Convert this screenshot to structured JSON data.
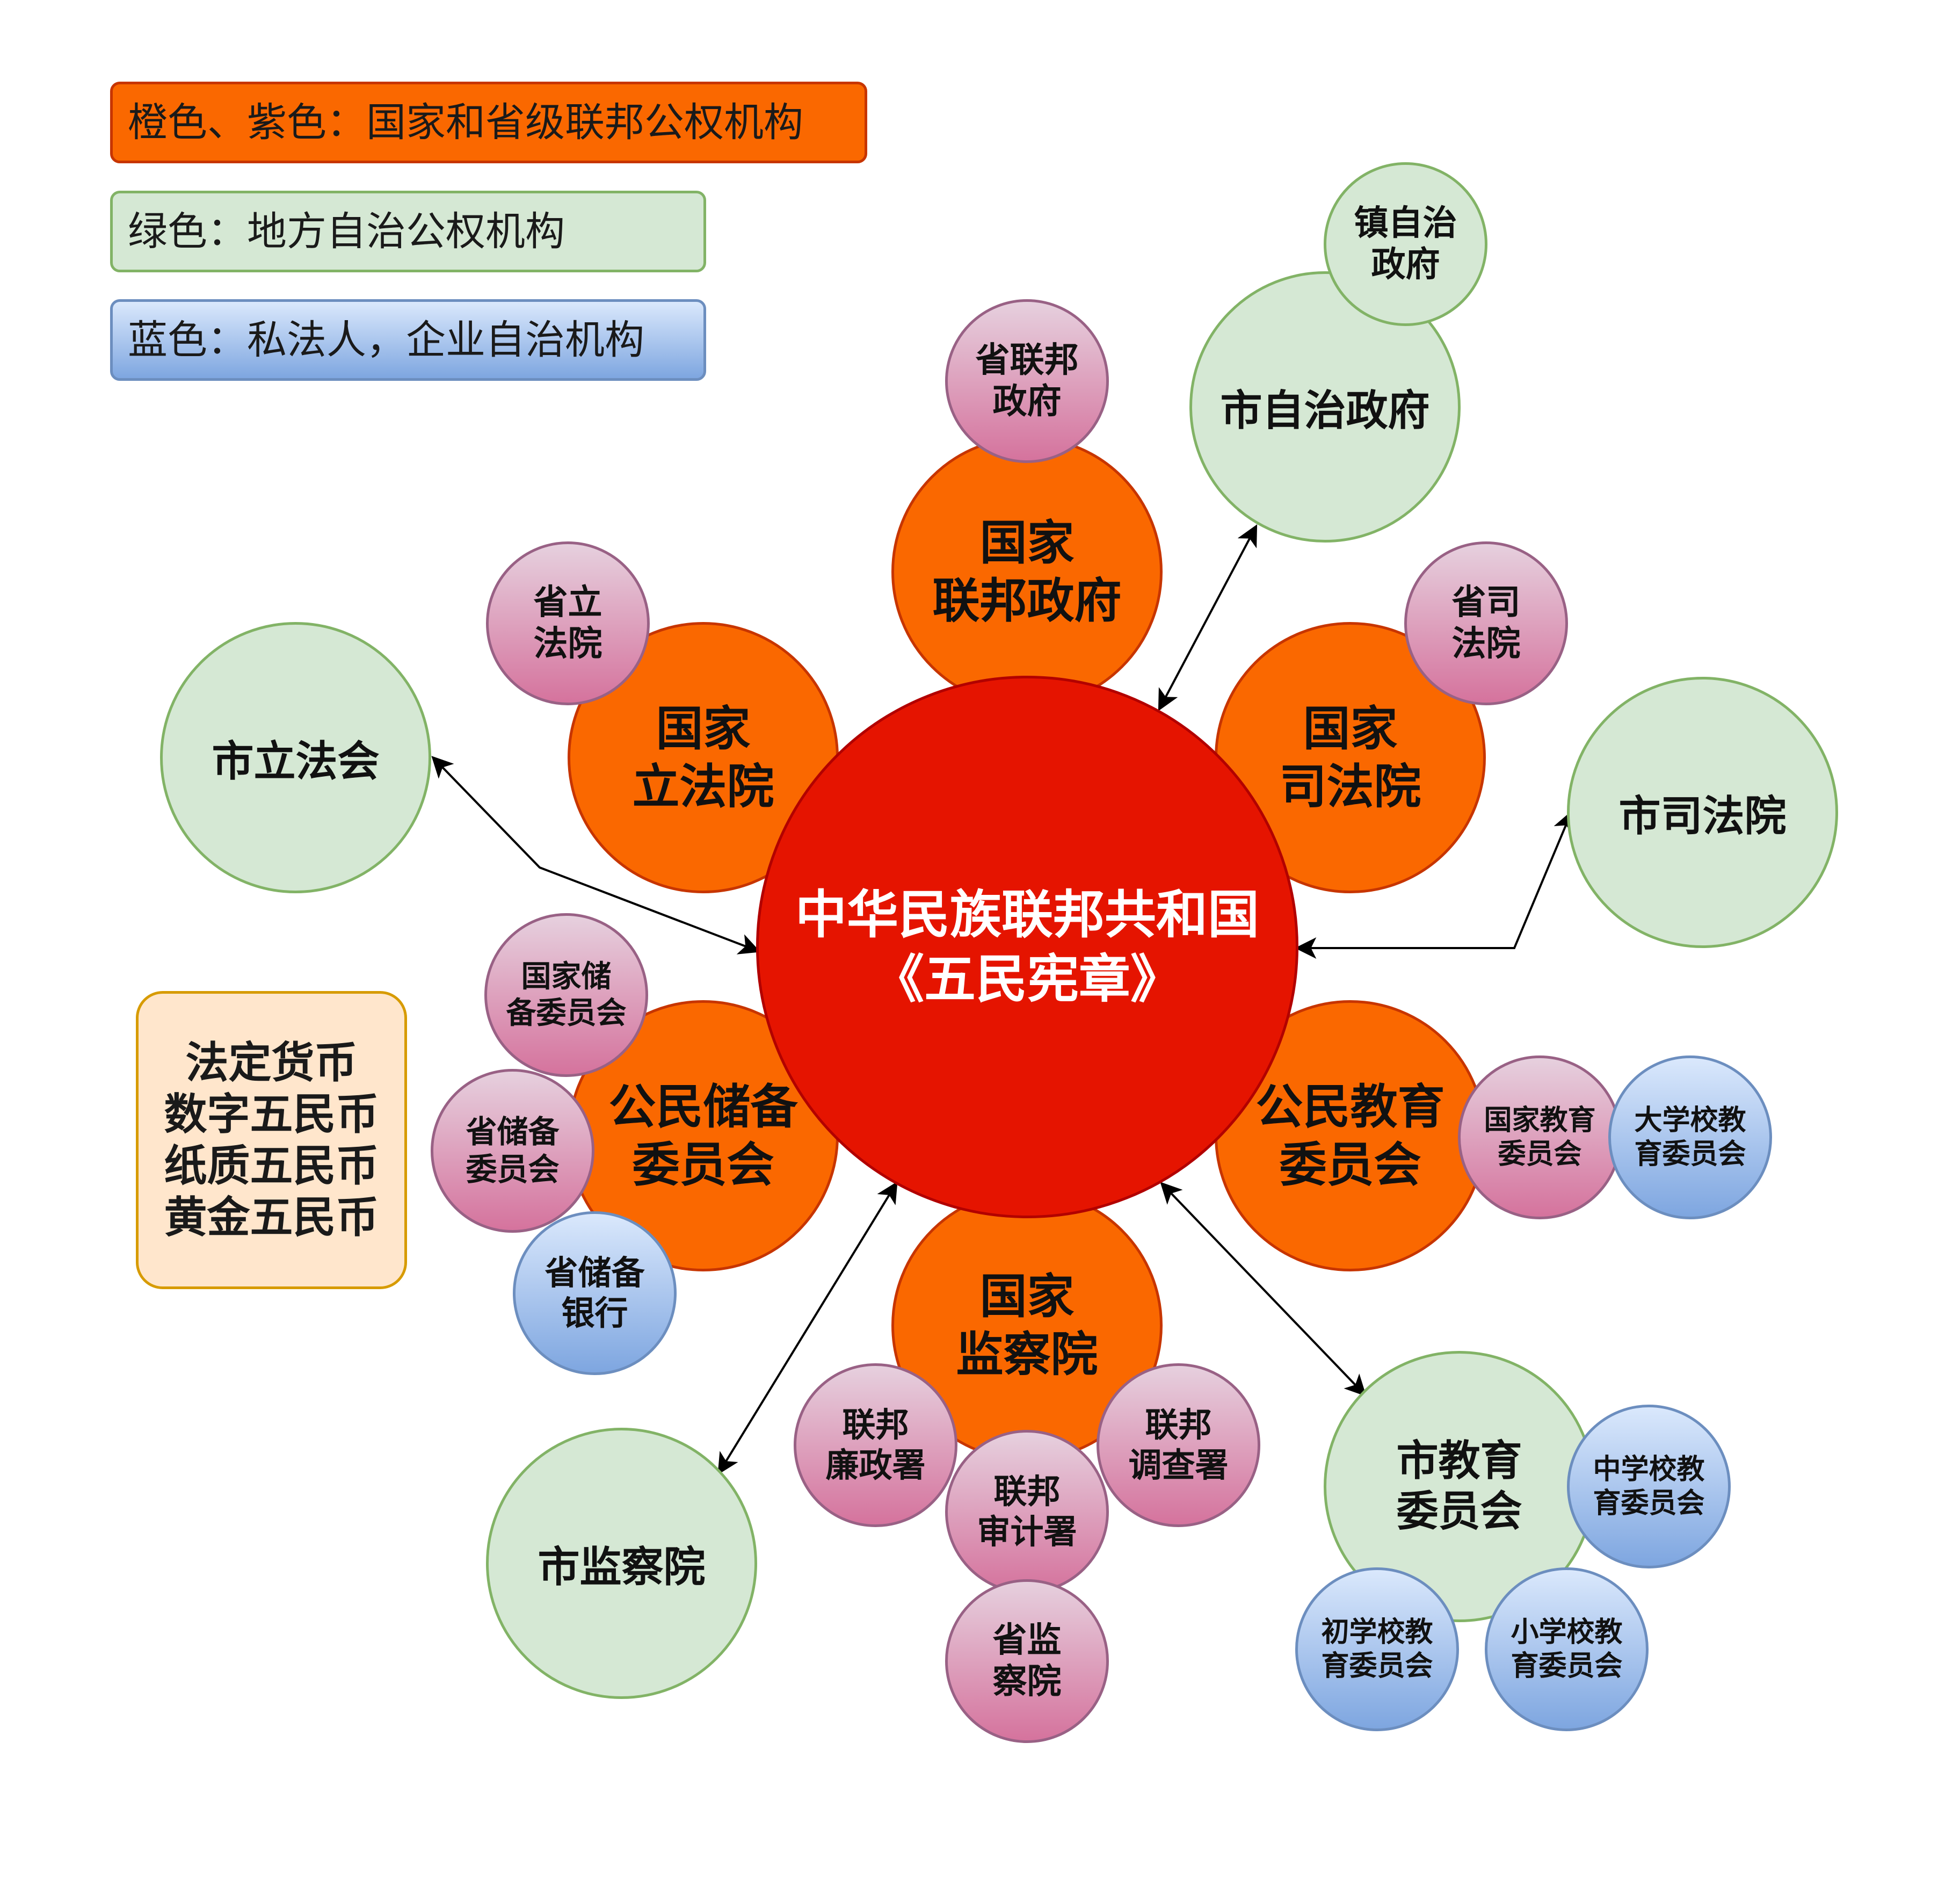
{
  "colors": {
    "orange_fill": "#fa6800",
    "orange_stroke": "#c73500",
    "red_fill": "#e51400",
    "red_stroke": "#b20000",
    "pink_fill_top": "#e6d0de",
    "pink_fill_bottom": "#d5739d",
    "pink_stroke": "#996185",
    "green_fill": "#d5e8d4",
    "green_stroke": "#82b366",
    "blue_fill_top": "#dae8fc",
    "blue_fill_bottom": "#7ea6e0",
    "blue_stroke": "#6c8ebf",
    "currency_fill": "#ffe6cc",
    "currency_stroke": "#d79b00",
    "arrow": "#000000"
  },
  "legend": {
    "orange_purple": "橙色、紫色：国家和省级联邦公权机构",
    "green": "绿色：地方自治公权机构",
    "blue": "蓝色：私法人，企业自治机构"
  },
  "currency": {
    "lines": [
      "法定货币",
      "数字五民币",
      "纸质五民币",
      "黄金五民币"
    ]
  },
  "center": {
    "lines": [
      "中华民族联邦共和国",
      "《五民宪章》"
    ]
  },
  "national": [
    {
      "id": "gov",
      "lines": [
        "国家",
        "联邦政府"
      ]
    },
    {
      "id": "leg",
      "lines": [
        "国家",
        "立法院"
      ]
    },
    {
      "id": "jud",
      "lines": [
        "国家",
        "司法院"
      ]
    },
    {
      "id": "res",
      "lines": [
        "公民储备",
        "委员会"
      ]
    },
    {
      "id": "edu",
      "lines": [
        "公民教育",
        "委员会"
      ]
    },
    {
      "id": "sup",
      "lines": [
        "国家",
        "监察院"
      ]
    }
  ],
  "provincial": [
    {
      "id": "prov-gov",
      "lines": [
        "省联邦",
        "政府"
      ]
    },
    {
      "id": "prov-leg",
      "lines": [
        "省立",
        "法院"
      ]
    },
    {
      "id": "prov-jud",
      "lines": [
        "省司",
        "法院"
      ]
    },
    {
      "id": "nat-reserve",
      "lines": [
        "国家储",
        "备委员会"
      ]
    },
    {
      "id": "prov-reserve",
      "lines": [
        "省储备",
        "委员会"
      ]
    },
    {
      "id": "nat-edu",
      "lines": [
        "国家教育",
        "委员会"
      ]
    },
    {
      "id": "anti-corruption",
      "lines": [
        "联邦",
        "廉政署"
      ]
    },
    {
      "id": "audit",
      "lines": [
        "联邦",
        "审计署"
      ]
    },
    {
      "id": "investigation",
      "lines": [
        "联邦",
        "调查署"
      ]
    },
    {
      "id": "prov-supervision",
      "lines": [
        "省监",
        "察院"
      ]
    }
  ],
  "local": [
    {
      "id": "city-gov",
      "lines": [
        "市自治政府"
      ]
    },
    {
      "id": "town-gov",
      "lines": [
        "镇自治",
        "政府"
      ]
    },
    {
      "id": "city-leg",
      "lines": [
        "市立法会"
      ]
    },
    {
      "id": "city-jud",
      "lines": [
        "市司法院"
      ]
    },
    {
      "id": "city-sup",
      "lines": [
        "市监察院"
      ]
    },
    {
      "id": "city-edu",
      "lines": [
        "市教育",
        "委员会"
      ]
    }
  ],
  "private": [
    {
      "id": "prov-bank",
      "lines": [
        "省储备",
        "银行"
      ]
    },
    {
      "id": "university-edu",
      "lines": [
        "大学校教",
        "育委员会"
      ]
    },
    {
      "id": "middle-edu",
      "lines": [
        "中学校教",
        "育委员会"
      ]
    },
    {
      "id": "junior-edu",
      "lines": [
        "初学校教",
        "育委员会"
      ]
    },
    {
      "id": "primary-edu",
      "lines": [
        "小学校教",
        "育委员会"
      ]
    }
  ]
}
